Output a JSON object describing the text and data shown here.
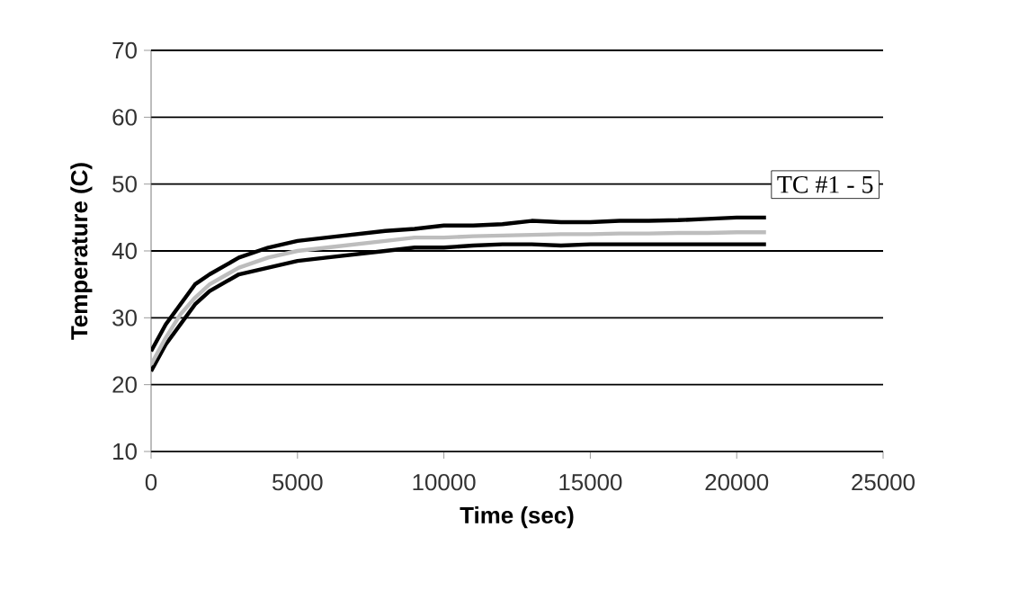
{
  "chart_data": {
    "type": "line",
    "xlabel": "Time (sec)",
    "ylabel": "Temperature (C)",
    "x": [
      0,
      500,
      1000,
      1500,
      2000,
      3000,
      4000,
      5000,
      6000,
      7000,
      8000,
      9000,
      10000,
      11000,
      12000,
      13000,
      14000,
      15000,
      16000,
      17000,
      18000,
      19000,
      20000,
      21000
    ],
    "series": [
      {
        "color": "#000000",
        "values": [
          25,
          29,
          32,
          35,
          36.5,
          39,
          40.5,
          41.5,
          42,
          42.5,
          43,
          43.3,
          43.8,
          43.8,
          44,
          44.5,
          44.3,
          44.3,
          44.5,
          44.5,
          44.6,
          44.8,
          45,
          45
        ]
      },
      {
        "color": "#000000",
        "values": [
          22,
          26,
          29,
          32,
          34,
          36.5,
          37.5,
          38.5,
          39,
          39.5,
          40,
          40.5,
          40.5,
          40.8,
          41,
          41,
          40.8,
          41,
          41,
          41,
          41,
          41,
          41,
          41
        ]
      },
      {
        "color": "#bdbdbd",
        "values": [
          23,
          27,
          30.5,
          33,
          35,
          37.5,
          39,
          40,
          40.5,
          41,
          41.5,
          42,
          42,
          42.2,
          42.3,
          42.4,
          42.5,
          42.5,
          42.6,
          42.6,
          42.7,
          42.7,
          42.8,
          42.8
        ]
      }
    ],
    "xlim": [
      0,
      25000
    ],
    "ylim": [
      10,
      70
    ],
    "xticks": [
      0,
      5000,
      10000,
      15000,
      20000,
      25000
    ],
    "yticks": [
      10,
      20,
      30,
      40,
      50,
      60,
      70
    ],
    "grid": "y",
    "marker": "none",
    "line_style": "solid",
    "annotations": [
      "TC #1 - 5"
    ]
  }
}
